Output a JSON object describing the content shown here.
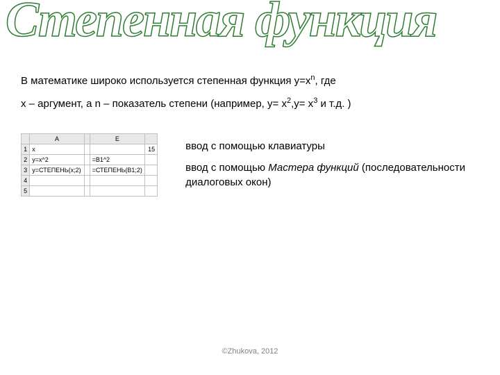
{
  "title": "Степенная функция",
  "paragraph1_a": "В математике широко используется степенная функция y=x",
  "paragraph1_sup": "n",
  "paragraph1_b": ", где",
  "paragraph2_a": "x – аргумент, а n – показатель степени (например, y= x",
  "paragraph2_sup1": "2",
  "paragraph2_mid": ",y= x",
  "paragraph2_sup2": "3",
  "paragraph2_b": " и т.д. )",
  "table": {
    "col_headers": [
      "",
      "A",
      "",
      "E",
      ""
    ],
    "rows": [
      [
        "1",
        "x",
        "",
        "",
        "15"
      ],
      [
        "2",
        "y=x^2",
        "",
        "=B1^2",
        ""
      ],
      [
        "3",
        "y=СТЕПЕНЬ(x;2)",
        "",
        "=СТЕПЕНЬ(B1;2)",
        ""
      ],
      [
        "4",
        "",
        "",
        "",
        ""
      ],
      [
        "5",
        "",
        "",
        "",
        ""
      ]
    ]
  },
  "note1": "ввод с помощью клавиатуры",
  "note2_a": "ввод с помощью ",
  "note2_i": "Мастера функций",
  "note2_b": " (последовательности диалоговых окон)",
  "footer": "©Zhukova,  2012"
}
